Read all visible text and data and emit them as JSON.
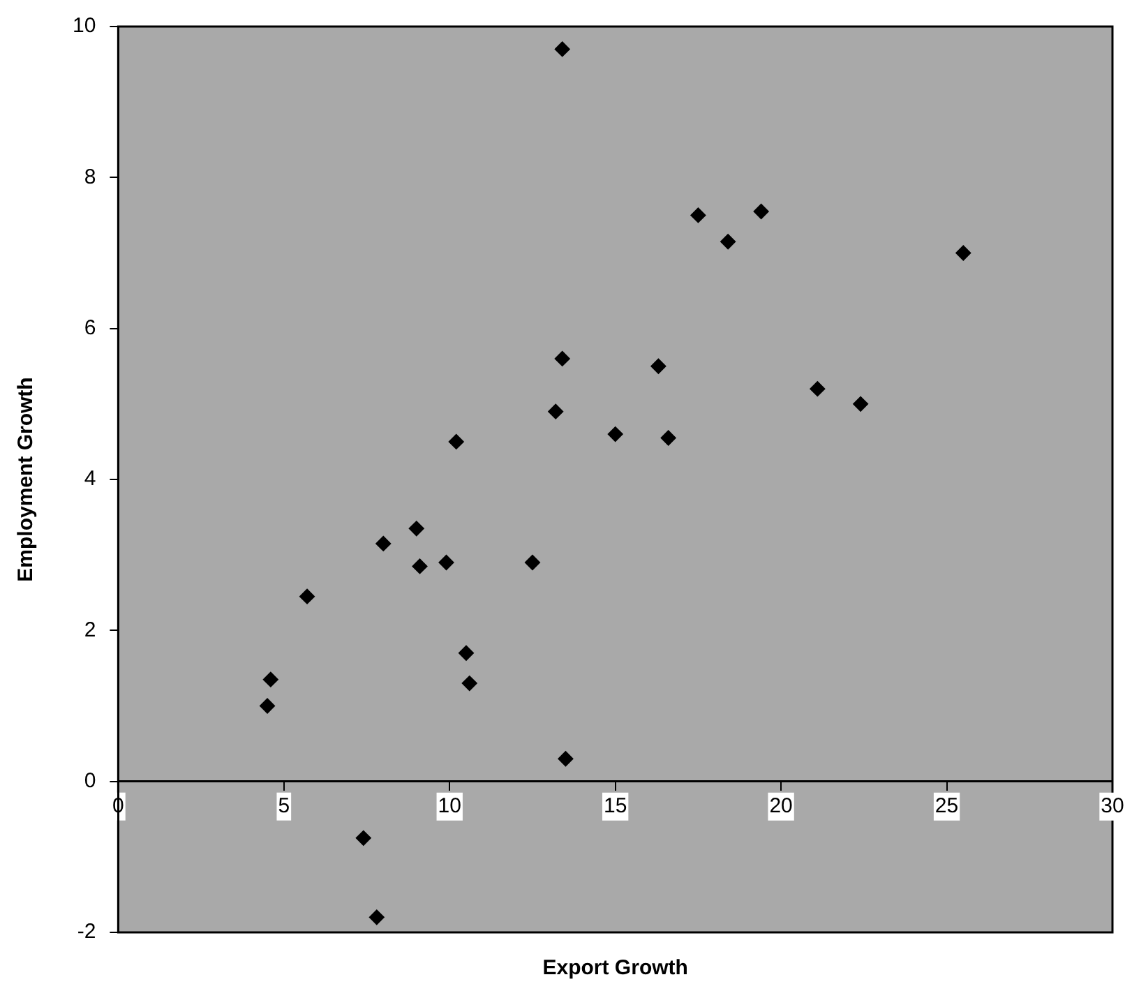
{
  "chart_data": {
    "type": "scatter",
    "xlabel": "Export Growth",
    "ylabel": "Employment Growth",
    "marker": "diamond",
    "xlim": [
      0,
      30
    ],
    "xticks": [
      0,
      5,
      10,
      15,
      20,
      25,
      30
    ],
    "ylim": [
      -2,
      10
    ],
    "yticks": [
      -2,
      0,
      2,
      4,
      6,
      8,
      10
    ],
    "series": [
      {
        "color": "#000000",
        "x": [
          13.4,
          13.4,
          13.2,
          10.2,
          17.5,
          19.4,
          18.4,
          25.5,
          16.3,
          21.1,
          22.4,
          15.0,
          16.6,
          8.0,
          9.0,
          9.1,
          9.9,
          12.5,
          5.7,
          10.5,
          10.6,
          4.6,
          4.5,
          13.5,
          7.4,
          7.8
        ],
        "values": [
          9.7,
          5.6,
          4.9,
          4.5,
          7.5,
          7.55,
          7.15,
          7.0,
          5.5,
          5.2,
          5.0,
          4.6,
          4.55,
          3.15,
          3.35,
          2.85,
          2.9,
          2.9,
          2.45,
          1.7,
          1.3,
          1.35,
          1.0,
          0.3,
          -0.75,
          -1.8
        ]
      }
    ]
  }
}
